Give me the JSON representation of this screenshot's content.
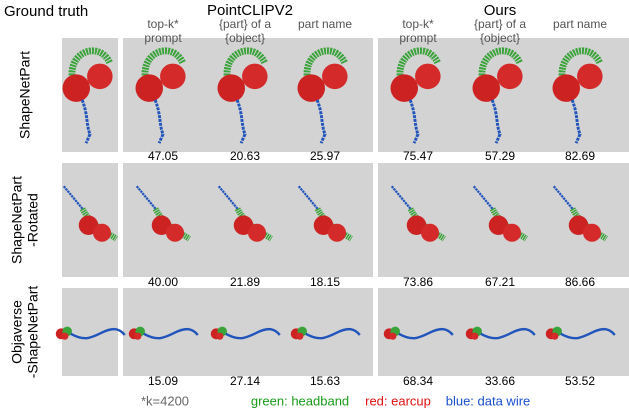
{
  "figure": {
    "ground_truth": "Ground truth",
    "methods": [
      {
        "name": "PointCLIPV2",
        "columns": [
          [
            "top-k*",
            "prompt"
          ],
          [
            "{part} of a",
            "{object}"
          ],
          [
            "part name"
          ]
        ]
      },
      {
        "name": "Ours",
        "columns": [
          [
            "top-k*",
            "prompt"
          ],
          [
            "{part} of a",
            "{object}"
          ],
          [
            "part name"
          ]
        ]
      }
    ],
    "rows": [
      {
        "label": [
          "ShapeNetPart"
        ],
        "scores": [
          "47.05",
          "20.63",
          "25.97",
          "75.47",
          "57.29",
          "82.69"
        ]
      },
      {
        "label": [
          "ShapeNetPart",
          "-Rotated"
        ],
        "scores": [
          "40.00",
          "21.89",
          "18.15",
          "73.86",
          "67.21",
          "86.66"
        ]
      },
      {
        "label": [
          "Objaverse",
          "-ShapeNetPart"
        ],
        "scores": [
          "15.09",
          "27.14",
          "15.63",
          "68.34",
          "33.66",
          "53.52"
        ]
      }
    ],
    "footnote": "*k=4200",
    "legend": [
      "green: headband",
      "red: earcup",
      "blue: data wire"
    ]
  }
}
